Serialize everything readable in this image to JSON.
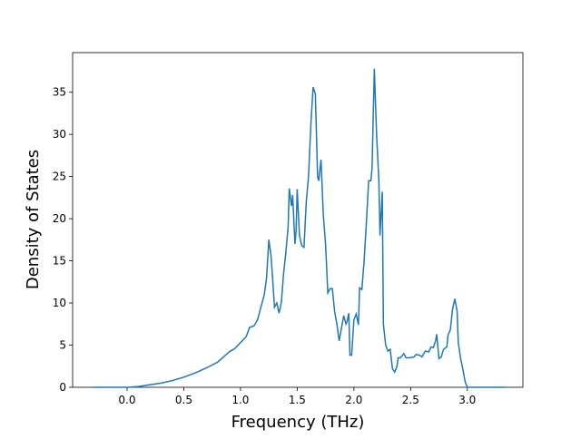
{
  "chart_data": {
    "type": "line",
    "xlabel": "Frequency (THz)",
    "ylabel": "Density of States",
    "series": [
      {
        "color": "#1f77b4",
        "x": [
          -0.3,
          -0.2,
          -0.1,
          0.0,
          0.1,
          0.2,
          0.3,
          0.4,
          0.5,
          0.6,
          0.7,
          0.8,
          0.9,
          0.95,
          1.0,
          1.05,
          1.08,
          1.12,
          1.15,
          1.18,
          1.21,
          1.23,
          1.25,
          1.27,
          1.29,
          1.3,
          1.32,
          1.34,
          1.36,
          1.38,
          1.4,
          1.42,
          1.43,
          1.45,
          1.46,
          1.48,
          1.49,
          1.5,
          1.52,
          1.54,
          1.56,
          1.58,
          1.6,
          1.62,
          1.64,
          1.66,
          1.68,
          1.69,
          1.71,
          1.73,
          1.75,
          1.77,
          1.79,
          1.81,
          1.83,
          1.85,
          1.87,
          1.89,
          1.91,
          1.93,
          1.94,
          1.955,
          1.965,
          1.98,
          2.0,
          2.02,
          2.04,
          2.05,
          2.07,
          2.09,
          2.11,
          2.13,
          2.15,
          2.16,
          2.18,
          2.2,
          2.22,
          2.23,
          2.25,
          2.26,
          2.28,
          2.3,
          2.32,
          2.34,
          2.36,
          2.38,
          2.39,
          2.41,
          2.44,
          2.46,
          2.49,
          2.53,
          2.55,
          2.58,
          2.6,
          2.63,
          2.66,
          2.68,
          2.7,
          2.72,
          2.73,
          2.75,
          2.77,
          2.79,
          2.82,
          2.83,
          2.85,
          2.87,
          2.89,
          2.91,
          2.92,
          2.94,
          2.96,
          2.98,
          3.0,
          3.1,
          3.33
        ],
        "values": [
          0,
          0,
          0,
          0,
          0.1,
          0.3,
          0.5,
          0.8,
          1.2,
          1.7,
          2.3,
          3.0,
          4.2,
          4.6,
          5.3,
          6.0,
          7.1,
          7.3,
          8.0,
          9.5,
          11.0,
          13.0,
          17.5,
          15.5,
          11.5,
          9.5,
          10.0,
          8.8,
          10.0,
          13.5,
          16.0,
          19.0,
          23.6,
          21.5,
          22.8,
          17.0,
          18.5,
          23.5,
          18.0,
          16.8,
          16.6,
          22.0,
          25.0,
          31.0,
          35.6,
          34.8,
          25.0,
          24.5,
          27.0,
          20.5,
          17.0,
          11.2,
          11.7,
          11.7,
          9.0,
          7.5,
          5.5,
          7.0,
          8.5,
          7.5,
          7.8,
          8.8,
          3.8,
          3.8,
          8.0,
          8.7,
          7.4,
          11.8,
          11.6,
          15.0,
          19.5,
          24.5,
          24.5,
          26.0,
          37.8,
          30.0,
          24.5,
          18.0,
          23.2,
          7.5,
          5.0,
          4.3,
          4.5,
          2.2,
          1.8,
          2.5,
          3.5,
          3.5,
          4.0,
          3.5,
          3.5,
          3.6,
          3.9,
          3.8,
          3.6,
          4.3,
          4.2,
          4.8,
          4.7,
          5.5,
          6.3,
          3.4,
          3.6,
          4.5,
          4.8,
          6.2,
          6.8,
          9.3,
          10.5,
          9.0,
          5.3,
          3.5,
          2.2,
          0.7,
          0,
          0,
          0
        ]
      }
    ],
    "xlim": [
      -0.48,
      3.49
    ],
    "ylim": [
      0,
      39.7
    ],
    "xticks": [
      {
        "value": 0,
        "label": "0.0"
      },
      {
        "value": 0.5,
        "label": "0.5"
      },
      {
        "value": 1,
        "label": "1.0"
      },
      {
        "value": 1.5,
        "label": "1.5"
      },
      {
        "value": 2,
        "label": "2.0"
      },
      {
        "value": 2.5,
        "label": "2.5"
      },
      {
        "value": 3,
        "label": "3.0"
      }
    ],
    "yticks": [
      0,
      5,
      10,
      15,
      20,
      25,
      30,
      35
    ]
  }
}
